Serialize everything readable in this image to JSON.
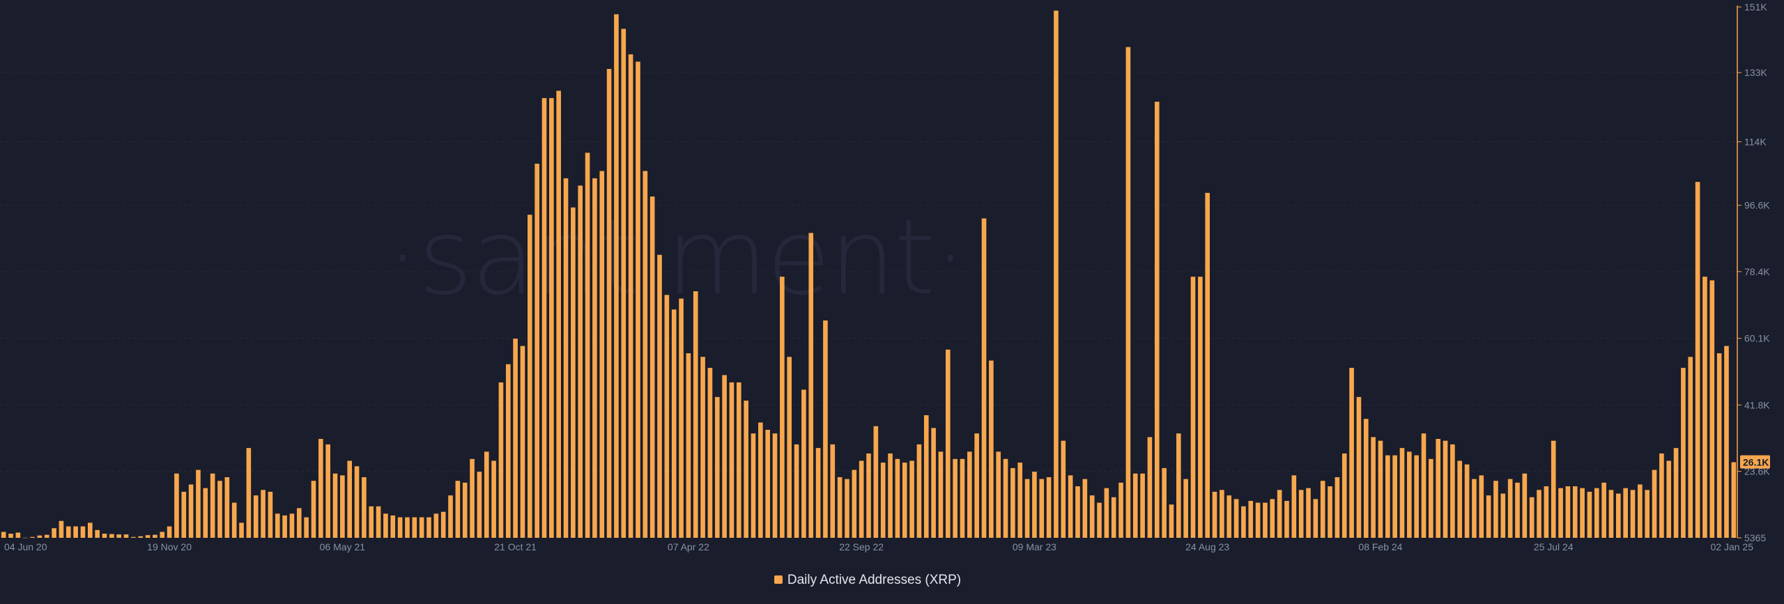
{
  "watermark": "·santiment·",
  "legend": {
    "label": "Daily Active Addresses (XRP)",
    "color": "#f7a74d"
  },
  "colors": {
    "background": "#1a1d2b",
    "bar": "#f7a74d",
    "axis": "#f7a74d",
    "grid": "#262a3a",
    "tick_text": "#8a90a6"
  },
  "chart_data": {
    "type": "bar",
    "y_axis_position": "right",
    "ylim": [
      5365,
      151000
    ],
    "y_ticks": [
      {
        "value": 151000,
        "label": "151K"
      },
      {
        "value": 133000,
        "label": "133K"
      },
      {
        "value": 114000,
        "label": "114K"
      },
      {
        "value": 96600,
        "label": "96.6K"
      },
      {
        "value": 78400,
        "label": "78.4K"
      },
      {
        "value": 60100,
        "label": "60.1K"
      },
      {
        "value": 41800,
        "label": "41.8K"
      },
      {
        "value": 23600,
        "label": "23.6K"
      },
      {
        "value": 5365,
        "label": "5365"
      }
    ],
    "x_ticks": [
      {
        "index": 3,
        "label": "04 Jun 20"
      },
      {
        "index": 23,
        "label": "19 Nov 20"
      },
      {
        "index": 47,
        "label": "06 May 21"
      },
      {
        "index": 71,
        "label": "21 Oct 21"
      },
      {
        "index": 95,
        "label": "07 Apr 22"
      },
      {
        "index": 119,
        "label": "22 Sep 22"
      },
      {
        "index": 143,
        "label": "09 Mar 23"
      },
      {
        "index": 167,
        "label": "24 Aug 23"
      },
      {
        "index": 191,
        "label": "08 Feb 24"
      },
      {
        "index": 215,
        "label": "25 Jul 24"
      },
      {
        "index": 240,
        "label": "02 Jan 25"
      }
    ],
    "last_value_label": "26.1K",
    "series": [
      {
        "name": "Daily Active Addresses (XRP)",
        "values": [
          7000,
          6500,
          6800,
          5400,
          5600,
          6000,
          6200,
          8000,
          10000,
          8500,
          8500,
          8500,
          9500,
          7500,
          6500,
          6400,
          6300,
          6300,
          5600,
          5800,
          6100,
          6200,
          7000,
          8500,
          23000,
          18000,
          20000,
          24000,
          19000,
          23000,
          21000,
          22000,
          15000,
          9500,
          30000,
          17000,
          18500,
          18000,
          12000,
          11500,
          12000,
          13500,
          11000,
          21000,
          32500,
          31000,
          23000,
          22500,
          26500,
          25000,
          22000,
          14000,
          14000,
          12000,
          11500,
          11000,
          11000,
          11000,
          11000,
          11000,
          12000,
          12500,
          17000,
          21000,
          20500,
          27000,
          23500,
          29000,
          26500,
          48000,
          53000,
          60000,
          58000,
          94000,
          108000,
          126000,
          126000,
          128000,
          104000,
          96000,
          102000,
          111000,
          104000,
          106000,
          134000,
          149000,
          145000,
          138000,
          136000,
          106000,
          99000,
          83000,
          72000,
          68000,
          71000,
          56000,
          73000,
          55000,
          52000,
          44000,
          50000,
          48000,
          48000,
          43000,
          34000,
          37000,
          35000,
          34000,
          77000,
          55000,
          31000,
          46000,
          89000,
          30000,
          65000,
          31000,
          22000,
          21500,
          24000,
          26500,
          28500,
          36000,
          26000,
          28500,
          27000,
          26000,
          26500,
          31000,
          39000,
          35500,
          29000,
          57000,
          27000,
          27000,
          29000,
          34000,
          93000,
          54000,
          29000,
          27000,
          24500,
          26000,
          21500,
          23500,
          21500,
          22000,
          150000,
          32000,
          22500,
          19500,
          21500,
          17000,
          15000,
          19000,
          16500,
          20500,
          140000,
          23000,
          23000,
          33000,
          125000,
          24500,
          14500,
          34000,
          21500,
          77000,
          77000,
          100000,
          18000,
          18500,
          17000,
          16000,
          14000,
          15500,
          15000,
          15000,
          16000,
          18500,
          15500,
          22500,
          18500,
          19000,
          16000,
          21000,
          19500,
          22000,
          28500,
          52000,
          44000,
          38000,
          33000,
          32000,
          28000,
          28000,
          30000,
          29000,
          28000,
          34000,
          27000,
          32500,
          32000,
          31000,
          26500,
          25500,
          21500,
          22500,
          17000,
          21000,
          17500,
          21500,
          20500,
          23000,
          16500,
          18500,
          19500,
          32000,
          19000,
          19500,
          19500,
          19000,
          18000,
          19000,
          20500,
          18500,
          17500,
          19000,
          18500,
          20000,
          18500,
          24000,
          28500,
          26500,
          30000,
          52000,
          55000,
          103000,
          77000,
          76000,
          56000,
          58000,
          26100
        ]
      }
    ]
  }
}
